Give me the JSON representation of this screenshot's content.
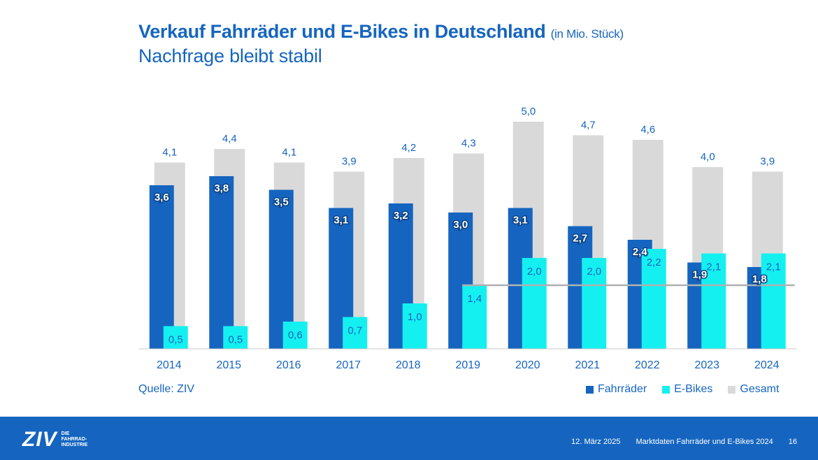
{
  "header": {
    "title": "Verkauf Fahrräder und E-Bikes in Deutschland",
    "title_unit": "(in Mio. Stück)",
    "subtitle": "Nachfrage bleibt stabil"
  },
  "source": "Quelle: ZIV",
  "footer": {
    "logo_mark": "ZIV",
    "logo_line1": "DIE",
    "logo_line2": "FAHRRAD-",
    "logo_line3": "INDUSTRIE",
    "date": "12. März 2025",
    "doc_title": "Marktdaten Fahrräder und E-Bikes 2024",
    "page": "16"
  },
  "colors": {
    "fahrraeder": "#1565c0",
    "ebikes": "#14f0f0",
    "gesamt": "#d9d9d9",
    "label_blue": "#1565c0",
    "ref_line": "#b0b0b0"
  },
  "chart_data": {
    "type": "bar",
    "categories": [
      "2014",
      "2015",
      "2016",
      "2017",
      "2018",
      "2019",
      "2020",
      "2021",
      "2022",
      "2023",
      "2024"
    ],
    "series": [
      {
        "name": "Fahrräder",
        "values": [
          3.6,
          3.8,
          3.5,
          3.1,
          3.2,
          3.0,
          3.1,
          2.7,
          2.4,
          1.9,
          1.8
        ],
        "labels": [
          "3,6",
          "3,8",
          "3,5",
          "3,1",
          "3,2",
          "3,0",
          "3,1",
          "2,7",
          "2,4",
          "1,9",
          "1,8"
        ]
      },
      {
        "name": "E-Bikes",
        "values": [
          0.5,
          0.5,
          0.6,
          0.7,
          1.0,
          1.4,
          2.0,
          2.0,
          2.2,
          2.1,
          2.1
        ],
        "labels": [
          "0,5",
          "0,5",
          "0,6",
          "0,7",
          "1,0",
          "1,4",
          "2,0",
          "2,0",
          "2,2",
          "2,1",
          "2,1"
        ]
      },
      {
        "name": "Gesamt",
        "values": [
          4.1,
          4.4,
          4.1,
          3.9,
          4.2,
          4.3,
          5.0,
          4.7,
          4.6,
          4.0,
          3.9
        ],
        "labels": [
          "4,1",
          "4,4",
          "4,1",
          "3,9",
          "4,2",
          "4,3",
          "5,0",
          "4,7",
          "4,6",
          "4,0",
          "3,9"
        ]
      }
    ],
    "reference_line": {
      "value": 1.4,
      "from": "2019",
      "to": "2024"
    },
    "ylim": [
      0,
      5.0
    ],
    "grid": false,
    "legend": "bottom-right"
  }
}
